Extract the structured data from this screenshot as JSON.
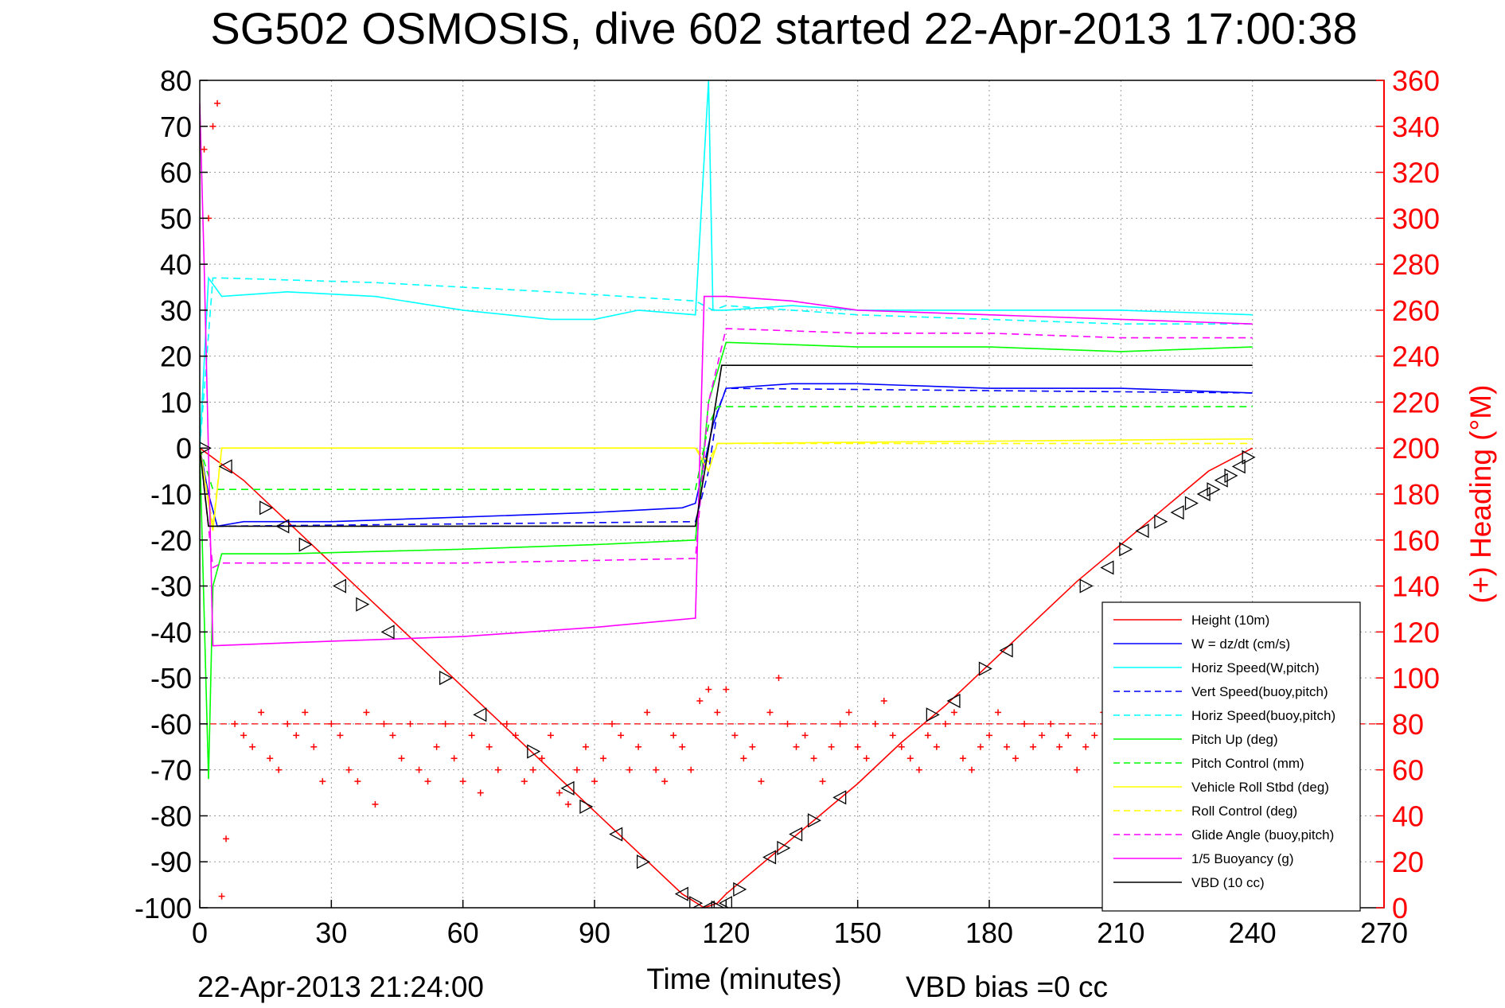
{
  "chart_data": {
    "type": "line",
    "title": "SG502 OSMOSIS, dive 602 started 22-Apr-2013 17:00:38",
    "xlabel": "Time (minutes)",
    "ylabel_right": "(+) Heading (°M)",
    "xlim": [
      0,
      270
    ],
    "ylim_left": [
      -100,
      80
    ],
    "ylim_right": [
      0,
      360
    ],
    "x_ticks": [
      0,
      30,
      60,
      90,
      120,
      150,
      180,
      210,
      240,
      270
    ],
    "y_ticks_left": [
      80,
      70,
      60,
      50,
      40,
      30,
      20,
      10,
      0,
      -10,
      -20,
      -30,
      -40,
      -50,
      -60,
      -70,
      -80,
      -90,
      -100
    ],
    "y_ticks_right": [
      360,
      340,
      320,
      300,
      280,
      260,
      240,
      220,
      200,
      180,
      160,
      140,
      120,
      100,
      80,
      60,
      40,
      20,
      0
    ],
    "grid": true,
    "legend_position": "bottom-right",
    "footer_left": "22-Apr-2013 21:24:00",
    "footer_right": "VBD bias =0 cc",
    "series": [
      {
        "name": "Height (10m)",
        "color": "#ff0000",
        "style": "solid",
        "marker": "none",
        "x": [
          0,
          10,
          20,
          30,
          40,
          50,
          60,
          70,
          80,
          90,
          100,
          110,
          115,
          118,
          120,
          130,
          140,
          150,
          160,
          170,
          180,
          190,
          200,
          210,
          220,
          230,
          240
        ],
        "y": [
          0,
          -7,
          -16,
          -25,
          -34,
          -43,
          -52,
          -61,
          -70,
          -79,
          -88,
          -97,
          -100,
          -99,
          -97,
          -89,
          -81,
          -73,
          -64,
          -56,
          -47,
          -38,
          -29,
          -21,
          -13,
          -5,
          0
        ]
      },
      {
        "name": "W = dz/dt (cm/s)",
        "color": "#0000ff",
        "style": "solid",
        "marker": "none",
        "x": [
          0,
          2,
          4,
          10,
          30,
          60,
          90,
          110,
          113,
          117,
          120,
          135,
          150,
          180,
          210,
          240
        ],
        "y": [
          0,
          -10,
          -17,
          -16,
          -16,
          -15,
          -14,
          -13,
          -12,
          5,
          13,
          14,
          14,
          13,
          13,
          12
        ]
      },
      {
        "name": "Horiz Speed(W,pitch)",
        "color": "#00ffff",
        "style": "solid",
        "marker": "none",
        "x": [
          0,
          2,
          5,
          20,
          40,
          60,
          80,
          90,
          100,
          113,
          116,
          117,
          120,
          135,
          150,
          180,
          210,
          240
        ],
        "y": [
          0,
          37,
          33,
          34,
          33,
          30,
          28,
          28,
          30,
          29,
          80,
          30,
          30,
          31,
          30,
          30,
          30,
          29
        ]
      },
      {
        "name": "Vert Speed(buoy,pitch)",
        "color": "#0000ff",
        "style": "dashed",
        "marker": "none",
        "x": [
          0,
          3,
          5,
          113,
          116,
          118,
          120,
          240
        ],
        "y": [
          0,
          -17,
          -17,
          -16,
          -5,
          8,
          13,
          12
        ]
      },
      {
        "name": "Horiz Speed(buoy,pitch)",
        "color": "#00ffff",
        "style": "dashed",
        "marker": "none",
        "x": [
          0,
          3,
          5,
          40,
          80,
          113,
          117,
          120,
          150,
          180,
          210,
          240
        ],
        "y": [
          0,
          37,
          37,
          36,
          34,
          32,
          30,
          31,
          29,
          28,
          27,
          27
        ]
      },
      {
        "name": "Pitch Up (deg)",
        "color": "#00ff00",
        "style": "solid",
        "marker": "none",
        "x": [
          0,
          2,
          3,
          5,
          20,
          60,
          90,
          113,
          116,
          120,
          150,
          180,
          210,
          240
        ],
        "y": [
          0,
          -72,
          -30,
          -23,
          -23,
          -22,
          -21,
          -20,
          10,
          23,
          22,
          22,
          21,
          22
        ]
      },
      {
        "name": "Pitch Control (mm)",
        "color": "#00ff00",
        "style": "dashed",
        "marker": "none",
        "x": [
          0,
          3,
          5,
          113,
          116,
          118,
          240
        ],
        "y": [
          0,
          -9,
          -9,
          -9,
          5,
          9,
          9
        ]
      },
      {
        "name": "Vehicle Roll Stbd (deg)",
        "color": "#ffff00",
        "style": "solid",
        "marker": "none",
        "x": [
          0,
          3,
          5,
          113,
          116,
          118,
          240
        ],
        "y": [
          0,
          -18,
          0,
          0,
          -5,
          1,
          2
        ]
      },
      {
        "name": "Roll Control (deg)",
        "color": "#ffff00",
        "style": "dashed",
        "marker": "none",
        "x": [
          0,
          3,
          5,
          113,
          116,
          118,
          240
        ],
        "y": [
          0,
          -17,
          0,
          0,
          -3,
          1,
          1
        ]
      },
      {
        "name": "Glide Angle (buoy,pitch)",
        "color": "#ff00ff",
        "style": "dashed",
        "marker": "none",
        "x": [
          0,
          3,
          5,
          60,
          113,
          116,
          120,
          150,
          180,
          210,
          240
        ],
        "y": [
          0,
          -26,
          -25,
          -25,
          -24,
          10,
          26,
          25,
          25,
          24,
          24
        ]
      },
      {
        "name": "1/5 Buoyancy (g)",
        "color": "#ff00ff",
        "style": "solid",
        "marker": "none",
        "x": [
          0,
          1,
          3,
          30,
          60,
          90,
          113,
          115,
          120,
          135,
          150,
          180,
          210,
          240
        ],
        "y": [
          75,
          40,
          -43,
          -42,
          -41,
          -39,
          -37,
          33,
          33,
          32,
          30,
          29,
          28,
          27
        ]
      },
      {
        "name": "VBD (10 cc)",
        "color": "#000000",
        "style": "solid",
        "marker": "none",
        "x": [
          0,
          2,
          113,
          116,
          119,
          240
        ],
        "y": [
          0,
          -17,
          -17,
          0,
          18,
          18
        ]
      }
    ],
    "heading_series": {
      "name": "Heading (°M)",
      "axis": "right",
      "color": "#ff0000",
      "marker": "+",
      "x": [
        1,
        2,
        3,
        4,
        5,
        6,
        8,
        10,
        12,
        14,
        16,
        18,
        20,
        22,
        24,
        26,
        28,
        30,
        32,
        34,
        36,
        38,
        40,
        42,
        44,
        46,
        48,
        50,
        52,
        54,
        56,
        58,
        60,
        62,
        64,
        66,
        68,
        70,
        72,
        74,
        76,
        78,
        80,
        82,
        84,
        86,
        88,
        90,
        92,
        94,
        96,
        98,
        100,
        102,
        104,
        106,
        108,
        110,
        112,
        114,
        116,
        118,
        120,
        122,
        124,
        126,
        128,
        130,
        132,
        134,
        136,
        138,
        140,
        142,
        144,
        146,
        148,
        150,
        152,
        154,
        156,
        158,
        160,
        162,
        164,
        166,
        168,
        170,
        172,
        174,
        176,
        178,
        180,
        182,
        184,
        186,
        188,
        190,
        192,
        194,
        196,
        198,
        200,
        202,
        204,
        206,
        208,
        210
      ],
      "y": [
        330,
        300,
        340,
        350,
        5,
        30,
        80,
        75,
        70,
        85,
        65,
        60,
        80,
        75,
        85,
        70,
        55,
        80,
        75,
        60,
        55,
        85,
        45,
        80,
        75,
        65,
        80,
        60,
        55,
        70,
        80,
        65,
        55,
        75,
        50,
        70,
        60,
        80,
        75,
        55,
        60,
        65,
        75,
        50,
        45,
        60,
        70,
        55,
        65,
        80,
        75,
        60,
        70,
        85,
        60,
        55,
        75,
        70,
        60,
        90,
        95,
        85,
        95,
        75,
        65,
        70,
        55,
        85,
        100,
        80,
        70,
        75,
        65,
        55,
        70,
        80,
        85,
        70,
        65,
        80,
        90,
        75,
        70,
        65,
        60,
        75,
        70,
        80,
        85,
        65,
        60,
        70,
        75,
        85,
        70,
        65,
        80,
        70,
        75,
        80,
        70,
        75,
        60,
        70,
        75,
        85,
        65,
        60
      ],
      "mean": 80
    },
    "triangle_markers": {
      "description_type": "black triangles on depth trace",
      "x": [
        1,
        6,
        15,
        19,
        24,
        32,
        37,
        43,
        56,
        64,
        76,
        84,
        88,
        95,
        101,
        110,
        113,
        116,
        118,
        120,
        123,
        130,
        133,
        136,
        140,
        146,
        167,
        172,
        179,
        184,
        202,
        207,
        211,
        215,
        219,
        223,
        226,
        229,
        231,
        233,
        235,
        237,
        239
      ],
      "y": [
        0,
        -4,
        -13,
        -17,
        -21,
        -30,
        -34,
        -40,
        -50,
        -58,
        -66,
        -74,
        -78,
        -84,
        -90,
        -97,
        -99,
        -100,
        -100,
        -99,
        -96,
        -89,
        -87,
        -84,
        -81,
        -76,
        -58,
        -55,
        -48,
        -44,
        -30,
        -26,
        -22,
        -18,
        -16,
        -14,
        -12,
        -10,
        -9,
        -7,
        -6,
        -4,
        -2
      ]
    }
  }
}
